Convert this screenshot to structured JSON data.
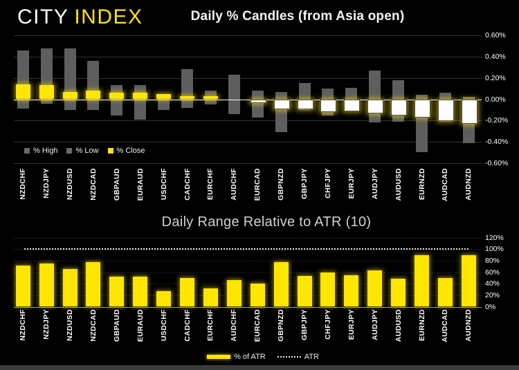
{
  "logo": {
    "part1": "CITY",
    "part2": "INDEX"
  },
  "colors": {
    "background": "#000000",
    "accent_yellow": "#ffe600",
    "range_gray": "#5e5e5e",
    "close_down_fill": "#ffffff",
    "title_white": "#f5f5f5",
    "title_gray": "#d2d2d2"
  },
  "chart_data": [
    {
      "type": "bar",
      "subtype": "high-low-close candles",
      "title": "Daily % Candles (from Asia open)",
      "categories": [
        "NZDCHF",
        "NZDJPY",
        "NZDUSD",
        "NZDCAD",
        "GBPAUD",
        "EURAUD",
        "USDCHF",
        "CADCHF",
        "EURCHF",
        "AUDCHF",
        "EURCAD",
        "GBPNZD",
        "GBPJPY",
        "CHFJPY",
        "EURJPY",
        "AUDJPY",
        "AUDUSD",
        "EURNZD",
        "AUDCAD",
        "AUDNZD"
      ],
      "series": [
        {
          "name": "% High",
          "values": [
            0.46,
            0.48,
            0.48,
            0.36,
            0.13,
            0.13,
            0.05,
            0.28,
            0.08,
            0.23,
            0.08,
            0.07,
            0.15,
            0.1,
            0.11,
            0.27,
            0.18,
            0.04,
            0.06,
            0.02
          ]
        },
        {
          "name": "% Low",
          "values": [
            -0.09,
            -0.04,
            -0.1,
            -0.1,
            -0.15,
            -0.19,
            -0.1,
            -0.08,
            -0.05,
            -0.14,
            -0.17,
            -0.31,
            -0.1,
            -0.15,
            -0.11,
            -0.22,
            -0.21,
            -0.5,
            -0.21,
            -0.41
          ]
        },
        {
          "name": "% Close",
          "values": [
            0.14,
            0.13,
            0.07,
            0.08,
            0.06,
            0.06,
            0.05,
            0.03,
            0.03,
            0.0,
            -0.02,
            -0.08,
            -0.08,
            -0.11,
            -0.1,
            -0.12,
            -0.14,
            -0.16,
            -0.19,
            -0.22
          ]
        }
      ],
      "y_ticks": [
        "0.60%",
        "0.40%",
        "0.20%",
        "0.00%",
        "-0.20%",
        "-0.40%",
        "-0.60%"
      ],
      "ylim": [
        -0.6,
        0.6
      ],
      "legend": [
        "% High",
        "% Low",
        "% Close"
      ],
      "legend_position": "bottom-left",
      "grid": true
    },
    {
      "type": "bar",
      "title": "Daily Range Relative to ATR (10)",
      "categories": [
        "NZDCHF",
        "NZDJPY",
        "NZDUSD",
        "NZDCAD",
        "GBPAUD",
        "EURAUD",
        "USDCHF",
        "CADCHF",
        "EURCHF",
        "AUDCHF",
        "EURCAD",
        "GBPNZD",
        "GBPJPY",
        "CHFJPY",
        "EURJPY",
        "AUDJPY",
        "AUDUSD",
        "EURNZD",
        "AUDCAD",
        "AUDNZD"
      ],
      "series": [
        {
          "name": "% of ATR",
          "values": [
            71,
            75,
            65,
            77,
            52,
            52,
            27,
            50,
            32,
            46,
            40,
            78,
            54,
            59,
            55,
            63,
            49,
            90,
            50,
            90
          ]
        }
      ],
      "reference_line": {
        "label": "ATR",
        "value": 100
      },
      "y_ticks": [
        "120%",
        "100%",
        "80%",
        "60%",
        "40%",
        "20%",
        "0%"
      ],
      "ylim": [
        0,
        120
      ],
      "legend": [
        "% of ATR",
        "ATR"
      ],
      "legend_position": "bottom-center",
      "grid": true
    }
  ]
}
